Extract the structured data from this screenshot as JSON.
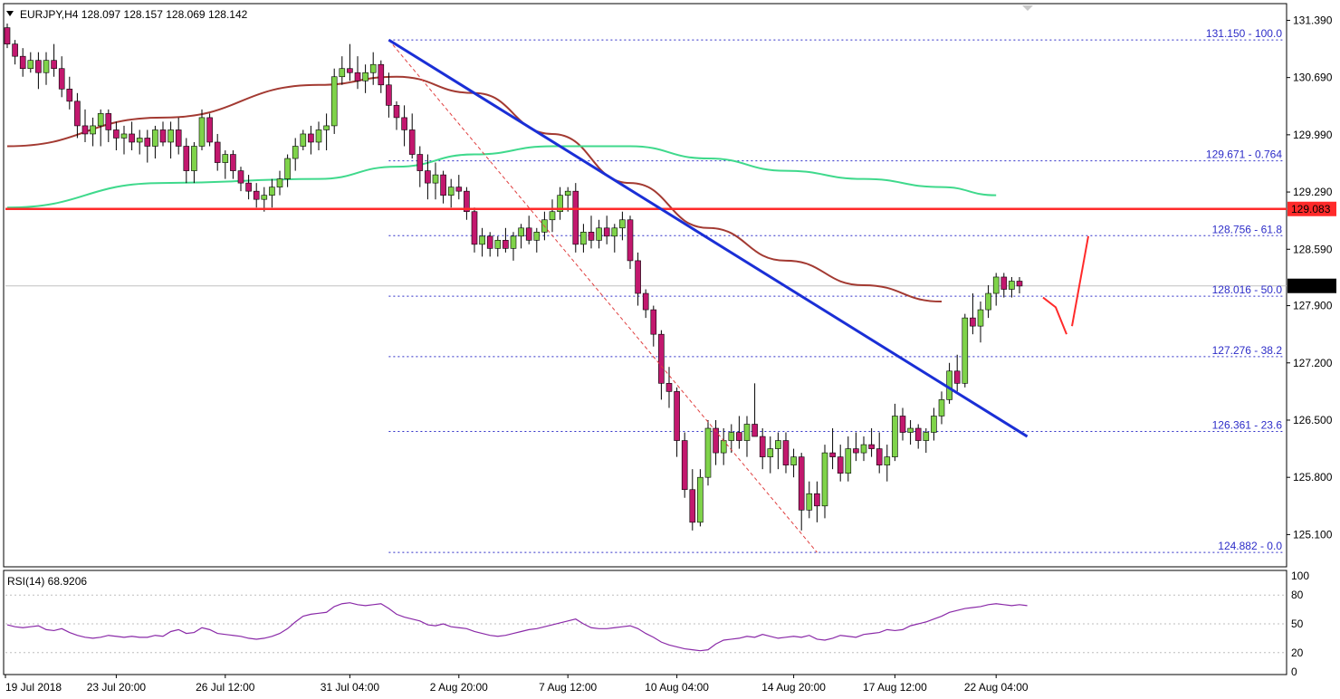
{
  "header": {
    "symbol_line": "EURJPY,H4  128.097 128.157 128.069 128.142",
    "rsi_line": "RSI(14) 68.9206"
  },
  "colors": {
    "bull": "#7fd34a",
    "bear": "#c2186e",
    "wick": "#000000",
    "ma_slow": "#a33a32",
    "ma_fast": "#3fd98c",
    "trendline": "#1a2fd6",
    "support": "#ff2a2a",
    "fib": "#2d2dc8",
    "rsi": "#8a2aa8"
  },
  "chart_data": [
    {
      "type": "candlestick",
      "symbol": "EURJPY",
      "timeframe": "H4",
      "ylim": [
        124.75,
        131.55
      ],
      "y_ticks": [
        "131.390",
        "130.690",
        "129.990",
        "129.290",
        "128.590",
        "127.900",
        "127.200",
        "126.500",
        "125.800",
        "125.100"
      ],
      "x_ticks": [
        "19 Jul 2018",
        "23 Jul 20:00",
        "26 Jul 12:00",
        "31 Jul 04:00",
        "2 Aug 20:00",
        "7 Aug 12:00",
        "10 Aug 04:00",
        "14 Aug 20:00",
        "17 Aug 12:00",
        "22 Aug 04:00"
      ],
      "current_price": "128.142",
      "support_level": "129.083",
      "ohlc": [
        [
          131.3,
          131.35,
          131.05,
          131.1
        ],
        [
          131.1,
          131.15,
          130.85,
          130.95
        ],
        [
          130.95,
          131.05,
          130.7,
          130.8
        ],
        [
          130.8,
          131.0,
          130.75,
          130.9
        ],
        [
          130.9,
          131.0,
          130.55,
          130.75
        ],
        [
          130.75,
          131.0,
          130.6,
          130.9
        ],
        [
          130.9,
          131.1,
          130.7,
          130.8
        ],
        [
          130.8,
          130.95,
          130.45,
          130.55
        ],
        [
          130.55,
          130.7,
          130.3,
          130.4
        ],
        [
          130.4,
          130.5,
          129.95,
          130.1
        ],
        [
          130.1,
          130.3,
          129.9,
          130.0
        ],
        [
          130.0,
          130.2,
          129.85,
          130.1
        ],
        [
          130.1,
          130.3,
          129.85,
          130.25
        ],
        [
          130.25,
          130.3,
          129.9,
          130.05
        ],
        [
          130.05,
          130.15,
          129.8,
          129.95
        ],
        [
          129.95,
          130.1,
          129.75,
          130.0
        ],
        [
          130.0,
          130.15,
          129.8,
          129.9
        ],
        [
          129.9,
          130.05,
          129.75,
          129.95
        ],
        [
          129.95,
          130.05,
          129.65,
          129.85
        ],
        [
          129.85,
          130.1,
          129.7,
          130.05
        ],
        [
          130.05,
          130.15,
          129.85,
          129.9
        ],
        [
          129.9,
          130.15,
          129.7,
          130.05
        ],
        [
          130.05,
          130.2,
          129.75,
          129.85
        ],
        [
          129.85,
          129.95,
          129.4,
          129.55
        ],
        [
          129.55,
          129.9,
          129.4,
          129.85
        ],
        [
          129.85,
          130.3,
          129.8,
          130.2
        ],
        [
          130.2,
          130.25,
          129.85,
          129.9
        ],
        [
          129.9,
          130.0,
          129.55,
          129.65
        ],
        [
          129.65,
          129.8,
          129.45,
          129.75
        ],
        [
          129.75,
          129.8,
          129.45,
          129.55
        ],
        [
          129.55,
          129.6,
          129.3,
          129.4
        ],
        [
          129.4,
          129.5,
          129.2,
          129.3
        ],
        [
          129.3,
          129.4,
          129.1,
          129.2
        ],
        [
          129.2,
          129.35,
          129.05,
          129.25
        ],
        [
          129.25,
          129.45,
          129.1,
          129.35
        ],
        [
          129.35,
          129.55,
          129.25,
          129.45
        ],
        [
          129.45,
          129.75,
          129.35,
          129.7
        ],
        [
          129.7,
          129.95,
          129.55,
          129.85
        ],
        [
          129.85,
          130.05,
          129.8,
          130.0
        ],
        [
          130.0,
          130.1,
          129.75,
          129.9
        ],
        [
          129.9,
          130.15,
          129.8,
          130.05
        ],
        [
          130.05,
          130.25,
          129.8,
          130.1
        ],
        [
          130.1,
          130.8,
          130.0,
          130.7
        ],
        [
          130.7,
          130.95,
          130.6,
          130.8
        ],
        [
          130.8,
          131.1,
          130.65,
          130.75
        ],
        [
          130.75,
          130.95,
          130.55,
          130.65
        ],
        [
          130.65,
          130.85,
          130.5,
          130.75
        ],
        [
          130.75,
          131.0,
          130.6,
          130.85
        ],
        [
          130.85,
          130.9,
          130.5,
          130.6
        ],
        [
          130.6,
          130.75,
          130.2,
          130.35
        ],
        [
          130.35,
          130.4,
          130.05,
          130.2
        ],
        [
          130.2,
          130.35,
          129.85,
          130.05
        ],
        [
          130.05,
          130.25,
          129.7,
          129.75
        ],
        [
          129.75,
          129.85,
          129.35,
          129.55
        ],
        [
          129.55,
          129.75,
          129.2,
          129.4
        ],
        [
          129.4,
          129.65,
          129.2,
          129.5
        ],
        [
          129.5,
          129.55,
          129.15,
          129.25
        ],
        [
          129.25,
          129.45,
          129.1,
          129.35
        ],
        [
          129.35,
          129.5,
          129.2,
          129.3
        ],
        [
          129.3,
          129.35,
          128.95,
          129.05
        ],
        [
          129.05,
          129.1,
          128.55,
          128.65
        ],
        [
          128.65,
          128.85,
          128.5,
          128.75
        ],
        [
          128.75,
          128.8,
          128.5,
          128.6
        ],
        [
          128.6,
          128.75,
          128.5,
          128.7
        ],
        [
          128.7,
          128.85,
          128.55,
          128.6
        ],
        [
          128.6,
          128.8,
          128.45,
          128.75
        ],
        [
          128.75,
          128.9,
          128.6,
          128.85
        ],
        [
          128.85,
          129.0,
          128.65,
          128.7
        ],
        [
          128.7,
          128.85,
          128.55,
          128.8
        ],
        [
          128.8,
          129.05,
          128.7,
          128.95
        ],
        [
          128.95,
          129.2,
          128.8,
          129.05
        ],
        [
          129.05,
          129.35,
          128.95,
          129.25
        ],
        [
          129.25,
          129.35,
          129.05,
          129.3
        ],
        [
          129.3,
          129.4,
          128.55,
          128.65
        ],
        [
          128.65,
          128.9,
          128.55,
          128.8
        ],
        [
          128.8,
          129.0,
          128.6,
          128.7
        ],
        [
          128.7,
          128.95,
          128.6,
          128.85
        ],
        [
          128.85,
          129.0,
          128.65,
          128.75
        ],
        [
          128.75,
          128.9,
          128.55,
          128.85
        ],
        [
          128.85,
          129.05,
          128.7,
          128.95
        ],
        [
          128.95,
          129.0,
          128.35,
          128.45
        ],
        [
          128.45,
          128.55,
          127.9,
          128.05
        ],
        [
          128.05,
          128.1,
          127.75,
          127.85
        ],
        [
          127.85,
          127.9,
          127.4,
          127.55
        ],
        [
          127.55,
          127.6,
          126.75,
          126.95
        ],
        [
          126.95,
          127.15,
          126.65,
          126.85
        ],
        [
          126.85,
          126.9,
          126.05,
          126.25
        ],
        [
          126.25,
          126.35,
          125.55,
          125.65
        ],
        [
          125.65,
          125.9,
          125.15,
          125.25
        ],
        [
          125.25,
          125.9,
          125.2,
          125.8
        ],
        [
          125.8,
          126.5,
          125.7,
          126.4
        ],
        [
          126.4,
          126.5,
          125.95,
          126.1
        ],
        [
          126.1,
          126.4,
          125.95,
          126.25
        ],
        [
          126.25,
          126.45,
          126.1,
          126.35
        ],
        [
          126.35,
          126.55,
          126.15,
          126.25
        ],
        [
          126.25,
          126.55,
          126.05,
          126.45
        ],
        [
          126.45,
          126.95,
          126.3,
          126.3
        ],
        [
          126.3,
          126.4,
          125.9,
          126.05
        ],
        [
          126.05,
          126.3,
          125.85,
          126.15
        ],
        [
          126.15,
          126.35,
          125.9,
          126.25
        ],
        [
          126.25,
          126.35,
          125.85,
          125.95
        ],
        [
          125.95,
          126.15,
          125.8,
          126.05
        ],
        [
          126.05,
          126.1,
          125.15,
          125.4
        ],
        [
          125.4,
          125.75,
          125.3,
          125.6
        ],
        [
          125.6,
          125.75,
          125.25,
          125.45
        ],
        [
          125.45,
          126.2,
          125.3,
          126.1
        ],
        [
          126.1,
          126.4,
          125.9,
          126.05
        ],
        [
          126.05,
          126.2,
          125.75,
          125.85
        ],
        [
          125.85,
          126.3,
          125.75,
          126.15
        ],
        [
          126.15,
          126.35,
          126.0,
          126.1
        ],
        [
          126.1,
          126.3,
          126.0,
          126.2
        ],
        [
          126.2,
          126.4,
          126.05,
          126.15
        ],
        [
          126.15,
          126.35,
          125.85,
          125.95
        ],
        [
          125.95,
          126.2,
          125.75,
          126.05
        ],
        [
          126.05,
          126.7,
          126.0,
          126.55
        ],
        [
          126.55,
          126.65,
          126.25,
          126.35
        ],
        [
          126.35,
          126.5,
          126.2,
          126.4
        ],
        [
          126.4,
          126.45,
          126.15,
          126.25
        ],
        [
          126.25,
          126.4,
          126.1,
          126.35
        ],
        [
          126.35,
          126.65,
          126.25,
          126.55
        ],
        [
          126.55,
          126.85,
          126.45,
          126.75
        ],
        [
          126.75,
          127.2,
          126.7,
          127.1
        ],
        [
          127.1,
          127.3,
          126.85,
          126.95
        ],
        [
          126.95,
          127.8,
          126.9,
          127.75
        ],
        [
          127.75,
          128.05,
          127.55,
          127.65
        ],
        [
          127.65,
          127.95,
          127.45,
          127.85
        ],
        [
          127.85,
          128.15,
          127.75,
          128.05
        ],
        [
          128.05,
          128.3,
          127.9,
          128.25
        ],
        [
          128.25,
          128.3,
          128.0,
          128.1
        ],
        [
          128.1,
          128.25,
          128.0,
          128.2
        ],
        [
          128.2,
          128.25,
          128.05,
          128.14
        ]
      ],
      "moving_averages": [
        {
          "color": "#a33a32",
          "points": [
            [
              0,
              129.85
            ],
            [
              20,
              130.2
            ],
            [
              40,
              130.6
            ],
            [
              50,
              130.7
            ],
            [
              60,
              130.5
            ],
            [
              70,
              130.0
            ],
            [
              80,
              129.4
            ],
            [
              90,
              128.85
            ],
            [
              100,
              128.45
            ],
            [
              110,
              128.15
            ],
            [
              120,
              127.95
            ]
          ]
        },
        {
          "color": "#3fd98c",
          "points": [
            [
              0,
              129.1
            ],
            [
              20,
              129.4
            ],
            [
              40,
              129.45
            ],
            [
              50,
              129.6
            ],
            [
              60,
              129.75
            ],
            [
              70,
              129.85
            ],
            [
              80,
              129.85
            ],
            [
              90,
              129.7
            ],
            [
              100,
              129.55
            ],
            [
              110,
              129.45
            ],
            [
              120,
              129.35
            ],
            [
              127,
              129.25
            ]
          ]
        }
      ],
      "trendline": {
        "from": [
          49,
          131.15
        ],
        "to": [
          131,
          126.3
        ]
      },
      "fib_anchor_line": {
        "from": [
          49,
          131.15
        ],
        "to": [
          104,
          124.882
        ]
      },
      "fibonacci": [
        {
          "price": "131.150",
          "label": "131.150 - 100.0"
        },
        {
          "price": "129.671",
          "label": "129.671 - 0.764"
        },
        {
          "price": "128.756",
          "label": "128.756 - 61.8"
        },
        {
          "price": "128.016",
          "label": "128.016 - 50.0"
        },
        {
          "price": "127.276",
          "label": "127.276 - 38.2"
        },
        {
          "price": "126.361",
          "label": "126.361 - 23.6"
        },
        {
          "price": "124.882",
          "label": "124.882 - 0.0"
        }
      ],
      "projection": [
        [
          128.0,
          127.55
        ],
        [
          127.65,
          128.75
        ]
      ]
    },
    {
      "type": "line",
      "name": "RSI(14)",
      "ylim": [
        0,
        100
      ],
      "y_ticks": [
        "100",
        "80",
        "50",
        "20",
        "0"
      ],
      "levels": [
        80,
        50,
        20
      ],
      "values": [
        49,
        47,
        46,
        47,
        48,
        44,
        43,
        45,
        41,
        38,
        36,
        35,
        36,
        38,
        37,
        36,
        37,
        36,
        36,
        38,
        37,
        42,
        44,
        40,
        41,
        46,
        44,
        40,
        39,
        38,
        37,
        35,
        34,
        35,
        37,
        40,
        45,
        52,
        58,
        60,
        61,
        62,
        68,
        71,
        72,
        70,
        69,
        70,
        71,
        66,
        60,
        57,
        55,
        53,
        49,
        48,
        50,
        47,
        46,
        45,
        42,
        40,
        38,
        37,
        38,
        40,
        42,
        44,
        45,
        47,
        49,
        51,
        53,
        55,
        50,
        46,
        45,
        45,
        46,
        47,
        48,
        45,
        40,
        36,
        31,
        28,
        26,
        24,
        23,
        22,
        23,
        29,
        33,
        34,
        35,
        37,
        36,
        39,
        37,
        35,
        36,
        37,
        36,
        38,
        34,
        33,
        35,
        38,
        37,
        36,
        39,
        40,
        41,
        44,
        43,
        44,
        48,
        50,
        52,
        55,
        58,
        62,
        64,
        66,
        67,
        68,
        70,
        71,
        70,
        69,
        70,
        69
      ]
    }
  ]
}
